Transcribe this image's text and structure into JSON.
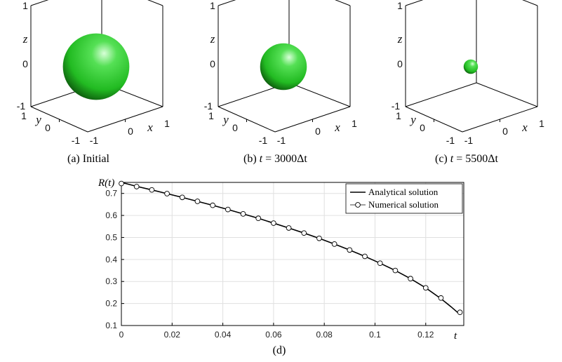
{
  "panels": [
    {
      "caption_prefix": "(a) Initial",
      "caption_t": "",
      "caption_suffix": "",
      "radius": 0.74,
      "axes": {
        "z_label": "z",
        "y_label": "y",
        "x_label": "x",
        "z_ticks": [
          "1",
          "0",
          "-1"
        ],
        "y_ticks": [
          "1",
          "0",
          "-1"
        ],
        "x_ticks": [
          "-1",
          "0",
          "1"
        ]
      }
    },
    {
      "caption_prefix": "(b) ",
      "caption_t": "t",
      "caption_suffix": " = 3000Δt",
      "radius": 0.52,
      "axes": {
        "z_label": "z",
        "y_label": "y",
        "x_label": "x",
        "z_ticks": [
          "1",
          "0",
          "-1"
        ],
        "y_ticks": [
          "1",
          "0",
          "-1"
        ],
        "x_ticks": [
          "-1",
          "0",
          "1"
        ]
      }
    },
    {
      "caption_prefix": "(c) ",
      "caption_t": "t",
      "caption_suffix": " = 5500Δt",
      "radius": 0.16,
      "axes": {
        "z_label": "z",
        "y_label": "y",
        "x_label": "x",
        "z_ticks": [
          "1",
          "0",
          "-1"
        ],
        "y_ticks": [
          "1",
          "0",
          "-1"
        ],
        "x_ticks": [
          "-1",
          "0",
          "1"
        ]
      }
    }
  ],
  "colors": {
    "sphere_light": "#d8ffd8",
    "sphere_mid": "#22bb22",
    "sphere_dark": "#0a4a0a",
    "line": "#000000",
    "grid": "#e0e0e0"
  },
  "chart_data": {
    "type": "line",
    "caption": "(d)",
    "xlabel": "t",
    "ylabel": "R(t)",
    "xlim": [
      0,
      0.135
    ],
    "ylim": [
      0.1,
      0.75
    ],
    "xticks": [
      0,
      0.02,
      0.04,
      0.06,
      0.08,
      0.1,
      0.12
    ],
    "xtick_labels": [
      "0",
      "0.02",
      "0.04",
      "0.06",
      "0.08",
      "0.1",
      "0.12"
    ],
    "yticks": [
      0.1,
      0.2,
      0.3,
      0.4,
      0.5,
      0.6,
      0.7
    ],
    "ytick_labels": [
      "0.1",
      "0.2",
      "0.3",
      "0.4",
      "0.5",
      "0.6",
      "0.7"
    ],
    "grid": true,
    "legend_position": "top-right",
    "series": [
      {
        "name": "Analytical solution",
        "style": "line",
        "x": [
          0,
          0.006,
          0.012,
          0.018,
          0.024,
          0.03,
          0.036,
          0.042,
          0.048,
          0.054,
          0.06,
          0.066,
          0.072,
          0.078,
          0.084,
          0.09,
          0.096,
          0.102,
          0.108,
          0.114,
          0.12,
          0.126,
          0.13,
          0.1335
        ],
        "y": [
          0.75,
          0.732,
          0.716,
          0.699,
          0.682,
          0.664,
          0.646,
          0.627,
          0.607,
          0.587,
          0.565,
          0.543,
          0.52,
          0.496,
          0.47,
          0.443,
          0.414,
          0.383,
          0.35,
          0.313,
          0.271,
          0.222,
          0.185,
          0.15
        ]
      },
      {
        "name": "Numerical solution",
        "style": "markers",
        "x": [
          0,
          0.006,
          0.012,
          0.018,
          0.024,
          0.03,
          0.036,
          0.042,
          0.048,
          0.054,
          0.06,
          0.066,
          0.072,
          0.078,
          0.084,
          0.09,
          0.096,
          0.102,
          0.108,
          0.114,
          0.12,
          0.126,
          0.1335
        ],
        "y": [
          0.745,
          0.731,
          0.716,
          0.699,
          0.682,
          0.664,
          0.646,
          0.627,
          0.607,
          0.587,
          0.565,
          0.543,
          0.52,
          0.496,
          0.47,
          0.443,
          0.414,
          0.383,
          0.35,
          0.313,
          0.271,
          0.225,
          0.16
        ]
      }
    ]
  }
}
